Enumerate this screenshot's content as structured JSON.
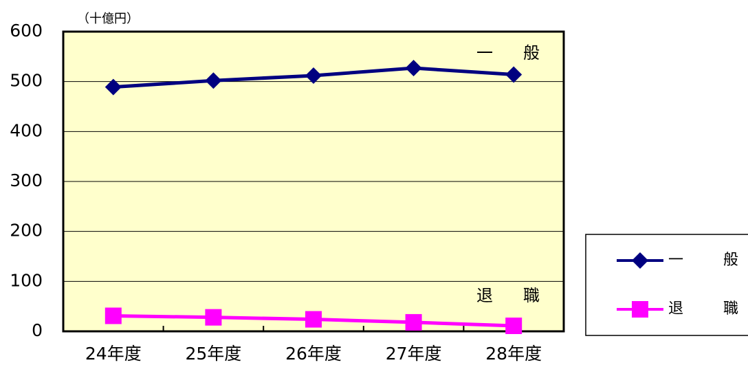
{
  "chart_data": {
    "type": "line",
    "unit_label": "（十億円）",
    "categories": [
      "24年度",
      "25年度",
      "26年度",
      "27年度",
      "28年度"
    ],
    "series": [
      {
        "name": "一　般",
        "color": "#000080",
        "marker": "diamond",
        "values": [
          489,
          502,
          512,
          527,
          514
        ]
      },
      {
        "name": "退　職",
        "color": "#ff00ff",
        "marker": "square",
        "values": [
          31,
          28,
          24,
          18,
          11
        ]
      }
    ],
    "ylim": [
      0,
      600
    ],
    "yticks": [
      0,
      100,
      200,
      300,
      400,
      500,
      600
    ],
    "grid": true,
    "legend": "right"
  }
}
